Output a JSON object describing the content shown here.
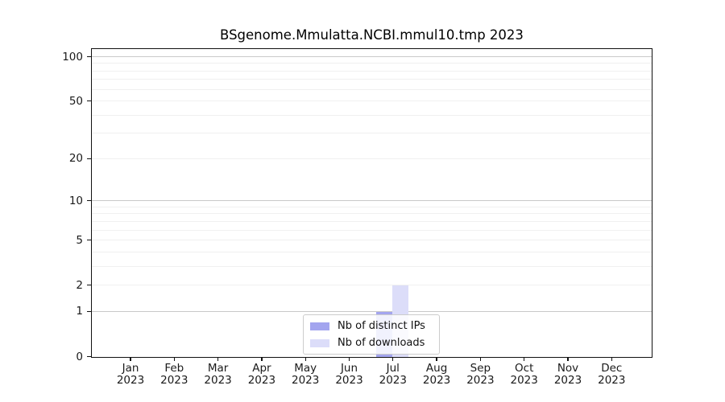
{
  "chart_data": {
    "type": "bar",
    "title": "BSgenome.Mmulatta.NCBI.mmul10.tmp 2023",
    "x_axis": {
      "categories": [
        "Jan",
        "Feb",
        "Mar",
        "Apr",
        "May",
        "Jun",
        "Jul",
        "Aug",
        "Sep",
        "Oct",
        "Nov",
        "Dec"
      ],
      "year_line": "2023"
    },
    "y_axis": {
      "scale": "log1p",
      "lim": [
        0,
        113
      ],
      "ticks": [
        0,
        1,
        2,
        5,
        10,
        20,
        50,
        100
      ],
      "major_gridlines": [
        1,
        10,
        100
      ],
      "minor_gridlines": [
        2,
        3,
        4,
        5,
        6,
        7,
        8,
        9,
        20,
        30,
        40,
        50,
        60,
        70,
        80,
        90
      ]
    },
    "series": [
      {
        "id": "distinct_ips",
        "name": "Nb of distinct IPs",
        "color": "#a3a5ef",
        "values": [
          0,
          0,
          0,
          0,
          0,
          0,
          1,
          0,
          0,
          0,
          0,
          0
        ]
      },
      {
        "id": "downloads",
        "name": "Nb of downloads",
        "color": "#dcddf9",
        "values": [
          0,
          0,
          0,
          0,
          0,
          0,
          2,
          0,
          0,
          0,
          0,
          0
        ]
      }
    ],
    "legend": {
      "position": "bottom-center"
    },
    "grid": "horizontal",
    "colors": {
      "spine": "#111111",
      "major_grid": "#c9c9c9",
      "minor_grid": "#f0f0f0",
      "tick_text": "#1a1a1a",
      "legend_border": "#cccccc"
    }
  }
}
